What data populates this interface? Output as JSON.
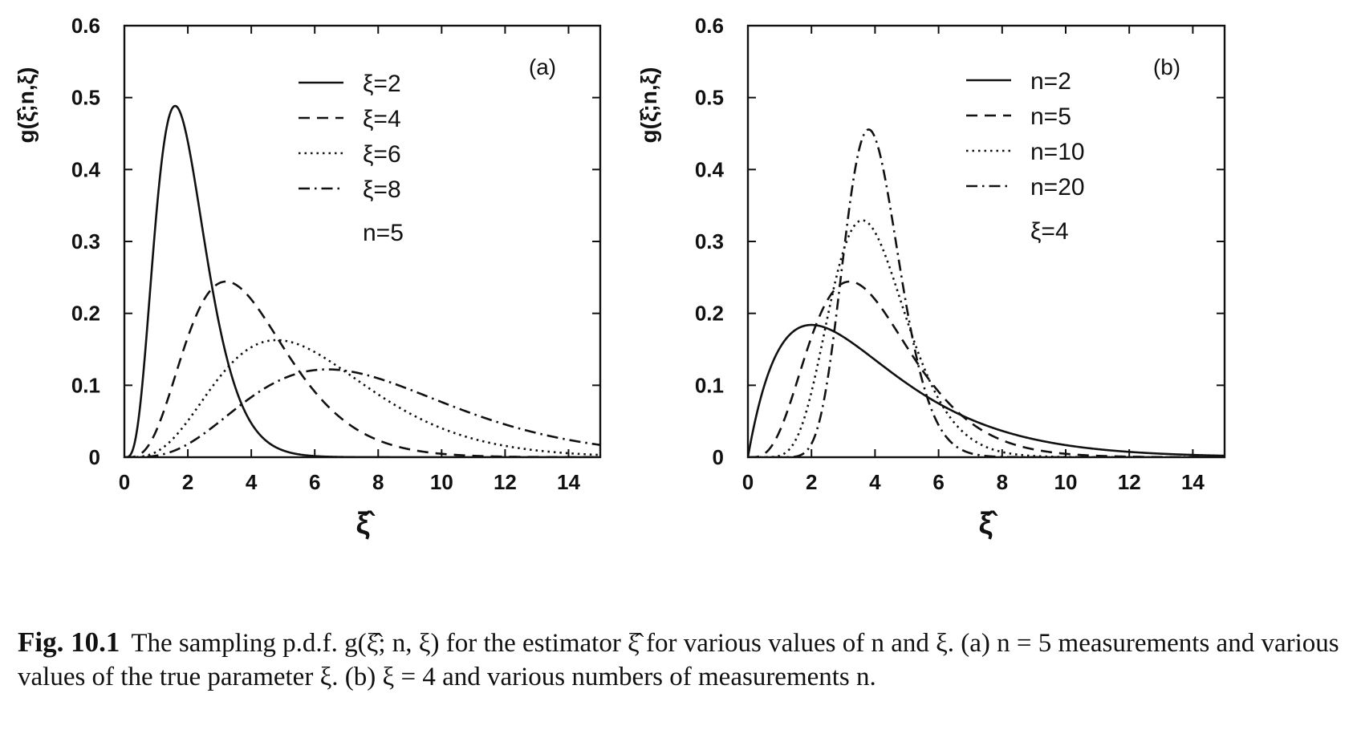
{
  "caption": {
    "label": "Fig. 10.1",
    "text": "The sampling p.d.f. g(ξ̂; n, ξ) for the estimator ξ̂ for various values of n and ξ. (a) n = 5 measurements and various values of the true parameter ξ. (b) ξ = 4 and various numbers of measurements n."
  },
  "chart_data": [
    {
      "type": "line",
      "panel_label": "(a)",
      "ylabel": "g(ξ̂;n,ξ)",
      "xlabel": "ξ̂",
      "xlim": [
        0,
        15
      ],
      "ylim": [
        0,
        0.6
      ],
      "xticks": [
        "0",
        "2",
        "4",
        "6",
        "8",
        "10",
        "12",
        "14"
      ],
      "yticks": [
        "0",
        "0.1",
        "0.2",
        "0.3",
        "0.4",
        "0.5",
        "0.6"
      ],
      "legend_position": "top-center",
      "legend_note": "n=5",
      "grid": false,
      "series": [
        {
          "name": "ξ=2",
          "style": "solid",
          "n": 5,
          "xi": 2
        },
        {
          "name": "ξ=4",
          "style": "dashed",
          "n": 5,
          "xi": 4
        },
        {
          "name": "ξ=6",
          "style": "dotted",
          "n": 5,
          "xi": 6
        },
        {
          "name": "ξ=8",
          "style": "dashdot",
          "n": 5,
          "xi": 8
        }
      ]
    },
    {
      "type": "line",
      "panel_label": "(b)",
      "ylabel": "g(ξ̂;n,ξ)",
      "xlabel": "ξ̂",
      "xlim": [
        0,
        15
      ],
      "ylim": [
        0,
        0.6
      ],
      "xticks": [
        "0",
        "2",
        "4",
        "6",
        "8",
        "10",
        "12",
        "14"
      ],
      "yticks": [
        "0",
        "0.1",
        "0.2",
        "0.3",
        "0.4",
        "0.5",
        "0.6"
      ],
      "legend_position": "top-center",
      "legend_note": "ξ=4",
      "grid": false,
      "series": [
        {
          "name": "n=2",
          "style": "solid",
          "n": 2,
          "xi": 4
        },
        {
          "name": "n=5",
          "style": "dashed",
          "n": 5,
          "xi": 4
        },
        {
          "name": "n=10",
          "style": "dotted",
          "n": 10,
          "xi": 4
        },
        {
          "name": "n=20",
          "style": "dashdot",
          "n": 20,
          "xi": 4
        }
      ]
    }
  ]
}
